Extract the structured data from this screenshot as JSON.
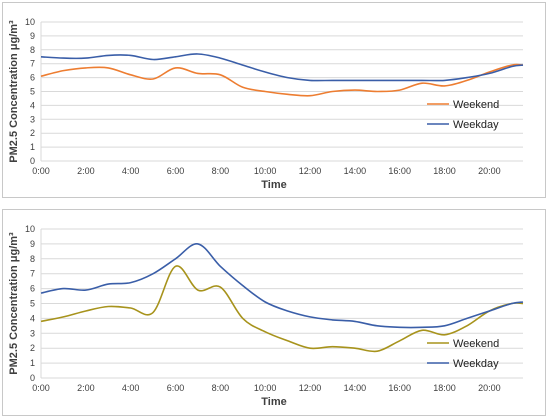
{
  "colors": {
    "weekend_top": "#ED7D31",
    "weekend_bottom": "#A7931C",
    "weekday": "#3A5EA8",
    "grid": "#d9d9d9"
  },
  "chart_data": [
    {
      "type": "line",
      "title": "",
      "xlabel": "Time",
      "ylabel": "PM2.5 Concentration μg/m³",
      "ylim": [
        0,
        10
      ],
      "xlim": [
        0,
        21.5
      ],
      "yticks": [
        "0",
        "1",
        "2",
        "3",
        "4",
        "5",
        "6",
        "7",
        "8",
        "9",
        "10"
      ],
      "xticks": [
        "0:00",
        "2:00",
        "4:00",
        "6:00",
        "8:00",
        "10:00",
        "12:00",
        "14:00",
        "16:00",
        "18:00",
        "20:00"
      ],
      "grid": true,
      "legend": "right",
      "x": [
        0,
        1,
        2,
        3,
        4,
        5,
        6,
        7,
        8,
        9,
        10,
        11,
        12,
        13,
        14,
        15,
        16,
        17,
        18,
        19,
        20,
        21,
        21.5
      ],
      "series": [
        {
          "name": "Weekend",
          "values": [
            6.1,
            6.5,
            6.7,
            6.7,
            6.2,
            5.9,
            6.7,
            6.3,
            6.2,
            5.3,
            5.0,
            4.8,
            4.7,
            5.0,
            5.1,
            5.0,
            5.1,
            5.6,
            5.4,
            5.8,
            6.4,
            6.9,
            6.9
          ]
        },
        {
          "name": "Weekday",
          "values": [
            7.5,
            7.4,
            7.4,
            7.6,
            7.6,
            7.3,
            7.5,
            7.7,
            7.4,
            6.9,
            6.4,
            6.0,
            5.8,
            5.8,
            5.8,
            5.8,
            5.8,
            5.8,
            5.8,
            6.0,
            6.3,
            6.8,
            6.9
          ]
        }
      ]
    },
    {
      "type": "line",
      "title": "",
      "xlabel": "Time",
      "ylabel": "PM2.5 Concentration μg/m³",
      "ylim": [
        0,
        10
      ],
      "xlim": [
        0,
        21.5
      ],
      "yticks": [
        "0",
        "1",
        "2",
        "3",
        "4",
        "5",
        "6",
        "7",
        "8",
        "9",
        "10"
      ],
      "xticks": [
        "0:00",
        "2:00",
        "4:00",
        "6:00",
        "8:00",
        "10:00",
        "12:00",
        "14:00",
        "16:00",
        "18:00",
        "20:00"
      ],
      "grid": true,
      "legend": "bottom-right",
      "x": [
        0,
        1,
        2,
        3,
        4,
        5,
        6,
        7,
        8,
        9,
        10,
        11,
        12,
        13,
        14,
        15,
        16,
        17,
        18,
        19,
        20,
        21,
        21.5
      ],
      "series": [
        {
          "name": "Weekend",
          "values": [
            3.8,
            4.1,
            4.5,
            4.8,
            4.7,
            4.4,
            7.5,
            5.9,
            6.1,
            4.0,
            3.1,
            2.5,
            2.0,
            2.1,
            2.0,
            1.8,
            2.5,
            3.2,
            2.9,
            3.5,
            4.5,
            5.0,
            5.0
          ]
        },
        {
          "name": "Weekday",
          "values": [
            5.7,
            6.0,
            5.9,
            6.3,
            6.4,
            7.0,
            8.0,
            9.0,
            7.5,
            6.2,
            5.1,
            4.5,
            4.1,
            3.9,
            3.8,
            3.5,
            3.4,
            3.4,
            3.5,
            4.0,
            4.5,
            5.0,
            5.1
          ]
        }
      ]
    }
  ]
}
